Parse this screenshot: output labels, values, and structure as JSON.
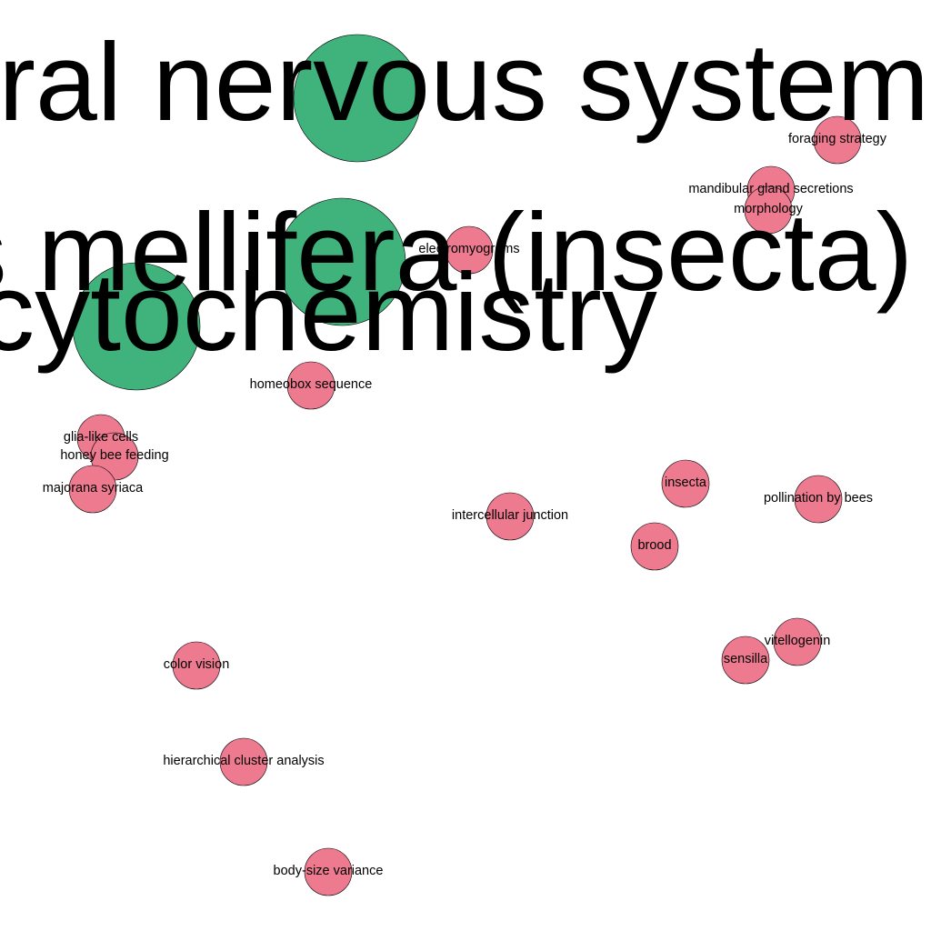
{
  "colors": {
    "main_node": "#40b37c",
    "term_node": "#ee7a90"
  },
  "main_terms": [
    "central nervous system",
    "apis mellifera (insecta)",
    "cytochemistry"
  ],
  "terms": [
    "foraging strategy",
    "mandibular gland secretions",
    "morphology",
    "electromyograms",
    "homeobox sequence",
    "glia-like cells",
    "honey bee feeding",
    "majorana syriaca",
    "insecta",
    "pollination by bees",
    "intercellular junction",
    "brood",
    "vitellogenin",
    "sensilla",
    "color vision",
    "hierarchical cluster analysis",
    "body-size variance"
  ]
}
